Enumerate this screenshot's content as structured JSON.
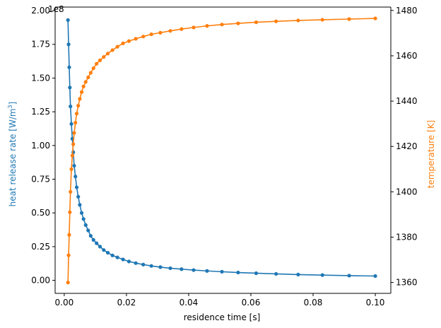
{
  "chart_data": {
    "type": "line",
    "xlabel": "residence time [s]",
    "xlim": [
      -0.00293,
      0.10499
    ],
    "x_ticks": [
      "0.00",
      "0.02",
      "0.04",
      "0.06",
      "0.08",
      "0.10"
    ],
    "x_tick_values": [
      0.0,
      0.02,
      0.04,
      0.06,
      0.08,
      0.1
    ],
    "left_axis": {
      "label_prefix": "heat release rate [W/m",
      "label_sup": "3",
      "label_suffix": "]",
      "color": "#1f77b4",
      "offset_text": "1e8",
      "ylim": [
        -0.0965,
        2.0265
      ],
      "ticks": [
        "0.00",
        "0.25",
        "0.50",
        "0.75",
        "1.00",
        "1.25",
        "1.50",
        "1.75",
        "2.00"
      ],
      "tick_values": [
        0.0,
        0.25,
        0.5,
        0.75,
        1.0,
        1.25,
        1.5,
        1.75,
        2.0
      ]
    },
    "right_axis": {
      "label": "temperature [K]",
      "color": "#ff7f0e",
      "ylim": [
        1355.2,
        1481.5
      ],
      "ticks": [
        "1360",
        "1380",
        "1400",
        "1420",
        "1440",
        "1460",
        "1480"
      ],
      "tick_values": [
        1360,
        1380,
        1400,
        1420,
        1440,
        1460,
        1480
      ]
    },
    "series": [
      {
        "axis": "left",
        "color": "#1f77b4",
        "x": [
          0.0012,
          0.0014,
          0.0016,
          0.0018,
          0.002,
          0.0023,
          0.0026,
          0.0029,
          0.0032,
          0.0036,
          0.004,
          0.0045,
          0.005,
          0.0056,
          0.0062,
          0.0069,
          0.0077,
          0.0085,
          0.0094,
          0.0104,
          0.0115,
          0.0127,
          0.014,
          0.0155,
          0.0171,
          0.0189,
          0.0208,
          0.023,
          0.0254,
          0.028,
          0.0309,
          0.0341,
          0.0377,
          0.0416,
          0.0459,
          0.0507,
          0.0559,
          0.0617,
          0.0681,
          0.0752,
          0.083,
          0.0916,
          0.1
        ],
        "y": [
          1.93,
          1.75,
          1.58,
          1.43,
          1.29,
          1.16,
          1.05,
          0.95,
          0.85,
          0.77,
          0.69,
          0.62,
          0.56,
          0.5,
          0.455,
          0.41,
          0.37,
          0.33,
          0.3,
          0.275,
          0.25,
          0.225,
          0.205,
          0.185,
          0.17,
          0.155,
          0.14,
          0.128,
          0.117,
          0.107,
          0.098,
          0.09,
          0.083,
          0.076,
          0.07,
          0.064,
          0.058,
          0.053,
          0.048,
          0.043,
          0.039,
          0.035,
          0.032
        ]
      },
      {
        "axis": "right",
        "color": "#ff7f0e",
        "x": [
          0.0012,
          0.0014,
          0.0016,
          0.0018,
          0.002,
          0.0023,
          0.0026,
          0.0029,
          0.0032,
          0.0036,
          0.004,
          0.0045,
          0.005,
          0.0056,
          0.0062,
          0.0069,
          0.0077,
          0.0085,
          0.0094,
          0.0104,
          0.0115,
          0.0127,
          0.014,
          0.0155,
          0.0171,
          0.0189,
          0.0208,
          0.023,
          0.0254,
          0.028,
          0.0309,
          0.0341,
          0.0377,
          0.0416,
          0.0459,
          0.0507,
          0.0559,
          0.0617,
          0.0681,
          0.0752,
          0.083,
          0.0916,
          0.1
        ],
        "y": [
          1360.0,
          1372.0,
          1381.0,
          1391.0,
          1400.0,
          1410.0,
          1416.0,
          1421.0,
          1426.0,
          1430.5,
          1434.5,
          1438.0,
          1441.0,
          1444.0,
          1446.5,
          1448.5,
          1450.5,
          1452.5,
          1454.5,
          1456.5,
          1458.0,
          1459.5,
          1461.0,
          1462.5,
          1464.0,
          1465.5,
          1466.5,
          1467.5,
          1468.5,
          1469.5,
          1470.2,
          1471.0,
          1471.8,
          1472.5,
          1473.2,
          1473.8,
          1474.3,
          1474.8,
          1475.2,
          1475.6,
          1475.9,
          1476.2,
          1476.5
        ]
      }
    ]
  }
}
